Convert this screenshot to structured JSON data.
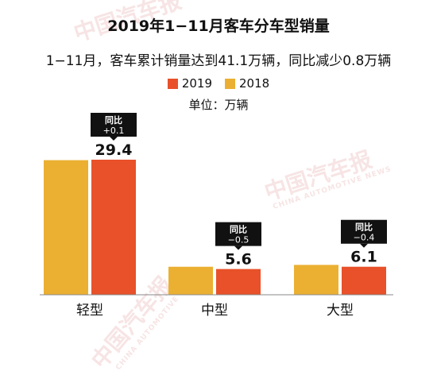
{
  "title": "2019年1−11月客车分车型销量",
  "subtitle": "1−11月，客车累计销量达到41.1万辆，同比减少0.8万辆",
  "unit_label": "单位：万辆",
  "watermark": {
    "text": "中国汽车报",
    "sub": "CHINA AUTOMOTIVE NEWS"
  },
  "colors": {
    "2019": "#E8512A",
    "2018": "#EBB032",
    "axis": "#888888",
    "callout_bg": "#111111",
    "callout_text": "#ffffff"
  },
  "chart_data": {
    "type": "bar",
    "categories": [
      "轻型",
      "中型",
      "大型"
    ],
    "series": [
      {
        "name": "2018",
        "values": [
          29.3,
          6.1,
          6.5
        ]
      },
      {
        "name": "2019",
        "values": [
          29.4,
          5.6,
          6.1
        ]
      }
    ],
    "data_labels": [
      "29.4",
      "5.6",
      "6.1"
    ],
    "yoy_label": "同比",
    "yoy_values": [
      "+0.1",
      "−0.5",
      "−0.4"
    ],
    "ylim": [
      0,
      35
    ],
    "legend": [
      "2019",
      "2018"
    ],
    "legend_position": "top-center"
  }
}
